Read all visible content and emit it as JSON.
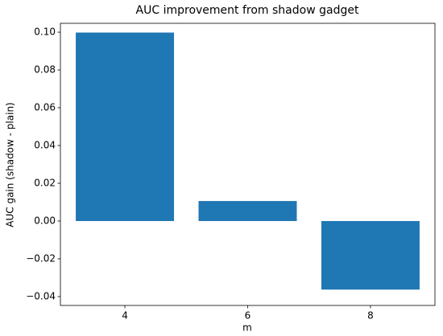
{
  "chart_data": {
    "type": "bar",
    "title": "AUC improvement from shadow gadget",
    "x_label": "m",
    "y_label": "AUC gain (shadow - plain)",
    "x": [
      4,
      6,
      8
    ],
    "values": [
      0.0998,
      0.0106,
      -0.0363
    ],
    "color": "#1f77b4",
    "xlim": [
      2.95,
      9.05
    ],
    "xticks": [
      4,
      6,
      8
    ],
    "ylim": [
      -0.0447,
      0.1047
    ],
    "yticks": [
      {
        "value": -0.04,
        "label": "−0.04"
      },
      {
        "value": -0.02,
        "label": "−0.02"
      },
      {
        "value": 0,
        "label": "0.00"
      },
      {
        "value": 0.02,
        "label": "0.02"
      },
      {
        "value": 0.04,
        "label": "0.04"
      },
      {
        "value": 0.06,
        "label": "0.06"
      },
      {
        "value": 0.08,
        "label": "0.08"
      },
      {
        "value": 0.1,
        "label": "0.10"
      }
    ],
    "grid": false
  }
}
